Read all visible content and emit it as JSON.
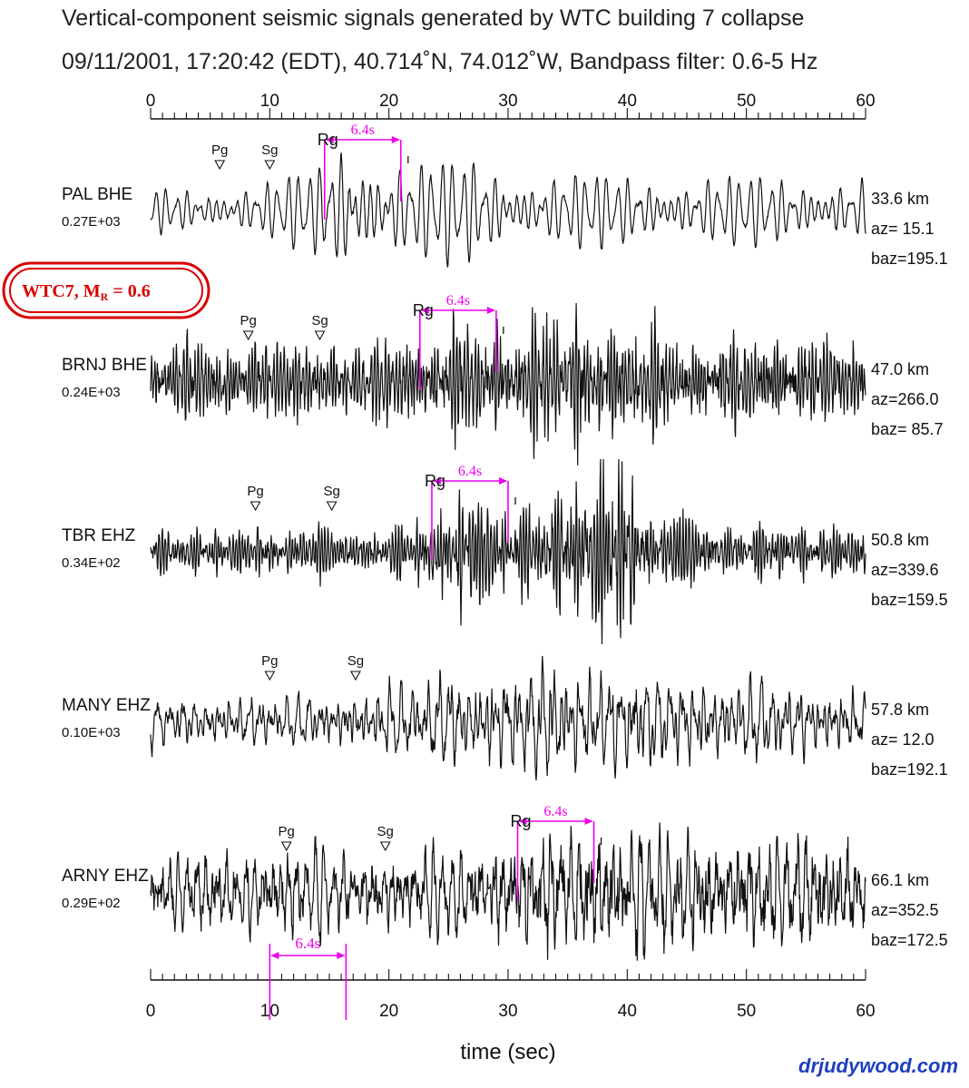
{
  "chart_data": {
    "type": "line",
    "title": "Vertical-component seismic signals generated by WTC building 7 collapse",
    "subtitle": "09/11/2001, 17:20:42 (EDT), 40.714˚N, 74.012˚W, Bandpass filter: 0.6-5 Hz",
    "xlabel": "time (sec)",
    "xlim": [
      0,
      60
    ],
    "x_ticks": [
      "0",
      "10",
      "20",
      "30",
      "40",
      "50",
      "60"
    ],
    "x_tick_values": [
      0,
      10,
      20,
      30,
      40,
      50,
      60
    ],
    "minor_tick_step": 1,
    "axis_top": true,
    "axis_bottom": true,
    "grid": false,
    "legend": "none",
    "series": [
      {
        "name": "PAL  BHE",
        "amplitude": "0.27E+03",
        "distance": "33.6 km",
        "az": "az= 15.1",
        "baz": "baz=195.1",
        "pg": 5.8,
        "sg": 10.0,
        "rg_start": 14.6,
        "rg_end": 21.0,
        "arrow_label": "6.4s",
        "rg_label": "Rg",
        "seed": 11,
        "style": "smooth",
        "envelope": [
          [
            0,
            0.35
          ],
          [
            10,
            0.45
          ],
          [
            14,
            0.7
          ],
          [
            16.5,
            1.3
          ],
          [
            19,
            1.0
          ],
          [
            22,
            0.75
          ],
          [
            27,
            0.85
          ],
          [
            32,
            0.6
          ],
          [
            45,
            0.55
          ],
          [
            60,
            0.55
          ]
        ]
      },
      {
        "name": "BRNJ  BHE",
        "amplitude": "0.24E+03",
        "distance": "47.0 km",
        "az": "az=266.0",
        "baz": "baz= 85.7",
        "pg": 8.2,
        "sg": 14.2,
        "rg_start": 22.6,
        "rg_end": 29.0,
        "arrow_label": "6.4s",
        "rg_label": "Rg",
        "seed": 23,
        "style": "noisy",
        "envelope": [
          [
            0,
            0.6
          ],
          [
            20,
            0.65
          ],
          [
            25,
            0.85
          ],
          [
            33,
            0.95
          ],
          [
            36,
            1.2
          ],
          [
            38,
            1.0
          ],
          [
            45,
            0.7
          ],
          [
            60,
            0.65
          ]
        ]
      },
      {
        "name": "TBR  EHZ",
        "amplitude": "0.34E+02",
        "distance": "50.8 km",
        "az": "az=339.6",
        "baz": "baz=159.5",
        "pg": 8.8,
        "sg": 15.2,
        "rg_start": 23.6,
        "rg_end": 30.0,
        "arrow_label": "6.4s",
        "rg_label": "Rg",
        "seed": 37,
        "style": "noisy",
        "envelope": [
          [
            0,
            0.3
          ],
          [
            22,
            0.32
          ],
          [
            26,
            0.9
          ],
          [
            30,
            0.5
          ],
          [
            33,
            0.7
          ],
          [
            36,
            0.95
          ],
          [
            40,
            1.35
          ],
          [
            42,
            0.55
          ],
          [
            50,
            0.35
          ],
          [
            60,
            0.32
          ]
        ]
      },
      {
        "name": "MANY  EHZ",
        "amplitude": "0.10E+03",
        "distance": "57.8 km",
        "az": "az= 12.0",
        "baz": "baz=192.1",
        "pg": 10.0,
        "sg": 17.2,
        "seed": 53,
        "style": "mixed",
        "envelope": [
          [
            0,
            0.45
          ],
          [
            15,
            0.5
          ],
          [
            25,
            0.85
          ],
          [
            33,
            1.1
          ],
          [
            40,
            0.95
          ],
          [
            47,
            0.8
          ],
          [
            60,
            0.6
          ]
        ]
      },
      {
        "name": "ARNY  EHZ",
        "amplitude": "0.29E+02",
        "distance": "66.1 km",
        "az": "az=352.5",
        "baz": "baz=172.5",
        "pg": 11.4,
        "sg": 19.7,
        "rg_start": 30.8,
        "rg_end": 37.2,
        "arrow_label": "6.4s",
        "rg_label": "Rg",
        "seed": 71,
        "style": "noisy",
        "envelope": [
          [
            0,
            0.6
          ],
          [
            25,
            0.65
          ],
          [
            31,
            0.9
          ],
          [
            35,
            1.0
          ],
          [
            42,
            1.05
          ],
          [
            50,
            0.85
          ],
          [
            56,
            1.0
          ],
          [
            60,
            0.7
          ]
        ]
      }
    ],
    "phase_labels": {
      "pg": "Pg",
      "sg": "Sg"
    },
    "reference_arrow": {
      "start": 10,
      "end": 16.4,
      "label": "6.4s"
    }
  },
  "badge": {
    "text": "WTC7, M",
    "sub": "R",
    "suffix": " = 0.6"
  },
  "credit": "drjudywood.com",
  "colors": {
    "annotation": "#ee00ee",
    "badge": "#d80000",
    "credit": "#1f3fbf",
    "trace": "#111111"
  }
}
